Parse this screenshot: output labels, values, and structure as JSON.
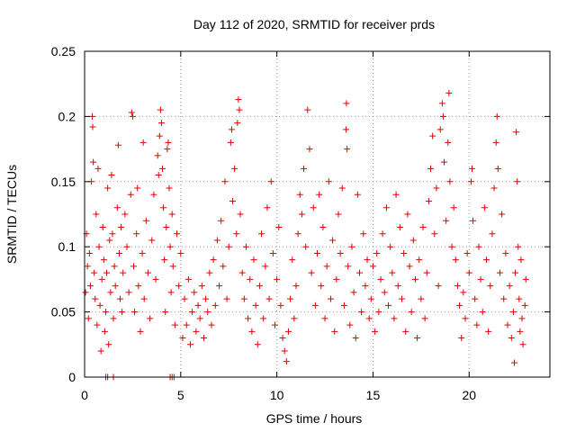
{
  "chart_data": {
    "type": "scatter",
    "title": "Day 112 of 2020, SRMTID for receiver prds",
    "xlabel": "GPS time / hours",
    "ylabel": "SRMTID / TECUs",
    "xlim": [
      0,
      24.2
    ],
    "ylim": [
      0,
      0.25
    ],
    "x_ticks": [
      0,
      5,
      10,
      15,
      20
    ],
    "x_tick_labels": [
      "0",
      "5",
      "10",
      "15",
      "20"
    ],
    "y_ticks": [
      0,
      0.05,
      0.1,
      0.15,
      0.2,
      0.25
    ],
    "y_tick_labels": [
      "0",
      "0.05",
      "0.1",
      "0.15",
      "0.2",
      "0.25"
    ],
    "grid": true,
    "marker": "+",
    "series": [
      {
        "name": "SRMTID",
        "color": "#e00000",
        "points": [
          [
            0.05,
            0.065
          ],
          [
            0.1,
            0.11
          ],
          [
            0.15,
            0.085
          ],
          [
            0.2,
            0.045
          ],
          [
            0.25,
            0.095
          ],
          [
            0.3,
            0.07
          ],
          [
            0.35,
            0.15
          ],
          [
            0.4,
            0.2
          ],
          [
            0.42,
            0.192
          ],
          [
            0.45,
            0.165
          ],
          [
            0.5,
            0.08
          ],
          [
            0.55,
            0.06
          ],
          [
            0.6,
            0.125
          ],
          [
            0.65,
            0.04
          ],
          [
            0.7,
            0.16
          ],
          [
            0.75,
            0.1
          ],
          [
            0.8,
            0.055
          ],
          [
            0.85,
            0.02
          ],
          [
            0.9,
            0.075
          ],
          [
            0.95,
            0.115
          ],
          [
            1.0,
            0.09
          ],
          [
            1.05,
            0.035
          ],
          [
            1.1,
            0.05
          ],
          [
            1.15,
            0.08
          ],
          [
            1.2,
            0.145
          ],
          [
            1.25,
            0.025
          ],
          [
            1.3,
            0.105
          ],
          [
            1.35,
            0.065
          ],
          [
            1.4,
            0.155
          ],
          [
            1.45,
            0.11
          ],
          [
            1.5,
            0.045
          ],
          [
            1.55,
            0.085
          ],
          [
            1.6,
            0.07
          ],
          [
            1.7,
            0.13
          ],
          [
            1.75,
            0.178
          ],
          [
            1.8,
            0.095
          ],
          [
            1.85,
            0.06
          ],
          [
            1.9,
            0.115
          ],
          [
            1.95,
            0.05
          ],
          [
            2.0,
            0.08
          ],
          [
            2.1,
            0.125
          ],
          [
            2.2,
            0.1
          ],
          [
            2.3,
            0.065
          ],
          [
            2.4,
            0.14
          ],
          [
            2.45,
            0.203
          ],
          [
            2.5,
            0.2
          ],
          [
            2.55,
            0.085
          ],
          [
            2.6,
            0.05
          ],
          [
            2.7,
            0.11
          ],
          [
            2.75,
            0.145
          ],
          [
            2.8,
            0.07
          ],
          [
            2.9,
            0.035
          ],
          [
            3.0,
            0.095
          ],
          [
            3.05,
            0.18
          ],
          [
            3.1,
            0.06
          ],
          [
            3.2,
            0.12
          ],
          [
            3.3,
            0.08
          ],
          [
            3.4,
            0.045
          ],
          [
            3.5,
            0.105
          ],
          [
            3.6,
            0.14
          ],
          [
            3.7,
            0.075
          ],
          [
            3.8,
            0.17
          ],
          [
            3.85,
            0.155
          ],
          [
            3.9,
            0.185
          ],
          [
            3.95,
            0.205
          ],
          [
            4.0,
            0.195
          ],
          [
            4.05,
            0.16
          ],
          [
            4.1,
            0.13
          ],
          [
            4.15,
            0.09
          ],
          [
            4.2,
            0.05
          ],
          [
            4.25,
            0.115
          ],
          [
            4.3,
            0.175
          ],
          [
            4.35,
            0.18
          ],
          [
            4.4,
            0.145
          ],
          [
            4.45,
            0.1
          ],
          [
            4.5,
            0.065
          ],
          [
            4.55,
            0.125
          ],
          [
            4.6,
            0.085
          ],
          [
            4.7,
            0.04
          ],
          [
            4.8,
            0.11
          ],
          [
            4.9,
            0.07
          ],
          [
            5.0,
            0.095
          ],
          [
            5.1,
            0.03
          ],
          [
            5.2,
            0.06
          ],
          [
            5.3,
            0.04
          ],
          [
            5.4,
            0.075
          ],
          [
            5.5,
            0.025
          ],
          [
            5.6,
            0.05
          ],
          [
            5.7,
            0.065
          ],
          [
            5.8,
            0.035
          ],
          [
            5.9,
            0.055
          ],
          [
            6.0,
            0.045
          ],
          [
            6.1,
            0.07
          ],
          [
            6.2,
            0.03
          ],
          [
            6.3,
            0.06
          ],
          [
            6.4,
            0.05
          ],
          [
            6.5,
            0.08
          ],
          [
            6.6,
            0.04
          ],
          [
            6.7,
            0.09
          ],
          [
            6.8,
            0.055
          ],
          [
            6.9,
            0.105
          ],
          [
            7.0,
            0.07
          ],
          [
            7.1,
            0.12
          ],
          [
            7.2,
            0.085
          ],
          [
            7.3,
            0.15
          ],
          [
            7.4,
            0.06
          ],
          [
            7.5,
            0.1
          ],
          [
            7.6,
            0.18
          ],
          [
            7.65,
            0.19
          ],
          [
            7.7,
            0.135
          ],
          [
            7.8,
            0.16
          ],
          [
            7.9,
            0.11
          ],
          [
            7.95,
            0.195
          ],
          [
            8.0,
            0.213
          ],
          [
            8.05,
            0.205
          ],
          [
            8.1,
            0.125
          ],
          [
            8.2,
            0.08
          ],
          [
            8.3,
            0.06
          ],
          [
            8.4,
            0.1
          ],
          [
            8.5,
            0.045
          ],
          [
            8.6,
            0.075
          ],
          [
            8.7,
            0.035
          ],
          [
            8.8,
            0.09
          ],
          [
            8.9,
            0.055
          ],
          [
            9.0,
            0.025
          ],
          [
            9.1,
            0.07
          ],
          [
            9.2,
            0.11
          ],
          [
            9.3,
            0.045
          ],
          [
            9.4,
            0.085
          ],
          [
            9.5,
            0.13
          ],
          [
            9.6,
            0.06
          ],
          [
            9.7,
            0.15
          ],
          [
            9.8,
            0.095
          ],
          [
            9.9,
            0.04
          ],
          [
            10.0,
            0.075
          ],
          [
            10.1,
            0.115
          ],
          [
            10.2,
            0.055
          ],
          [
            10.3,
            0.03
          ],
          [
            10.4,
            0.02
          ],
          [
            10.5,
            0.012
          ],
          [
            10.6,
            0.035
          ],
          [
            10.7,
            0.06
          ],
          [
            10.8,
            0.09
          ],
          [
            10.9,
            0.045
          ],
          [
            11.0,
            0.07
          ],
          [
            11.1,
            0.11
          ],
          [
            11.2,
            0.14
          ],
          [
            11.3,
            0.125
          ],
          [
            11.4,
            0.16
          ],
          [
            11.5,
            0.1
          ],
          [
            11.6,
            0.205
          ],
          [
            11.7,
            0.175
          ],
          [
            11.8,
            0.08
          ],
          [
            11.9,
            0.13
          ],
          [
            12.0,
            0.055
          ],
          [
            12.1,
            0.095
          ],
          [
            12.2,
            0.14
          ],
          [
            12.3,
            0.07
          ],
          [
            12.4,
            0.115
          ],
          [
            12.5,
            0.045
          ],
          [
            12.6,
            0.085
          ],
          [
            12.7,
            0.15
          ],
          [
            12.8,
            0.06
          ],
          [
            12.9,
            0.105
          ],
          [
            13.0,
            0.035
          ],
          [
            13.1,
            0.075
          ],
          [
            13.2,
            0.125
          ],
          [
            13.3,
            0.095
          ],
          [
            13.4,
            0.145
          ],
          [
            13.5,
            0.055
          ],
          [
            13.6,
            0.19
          ],
          [
            13.62,
            0.21
          ],
          [
            13.65,
            0.175
          ],
          [
            13.7,
            0.085
          ],
          [
            13.8,
            0.04
          ],
          [
            13.9,
            0.1
          ],
          [
            14.0,
            0.065
          ],
          [
            14.1,
            0.03
          ],
          [
            14.2,
            0.14
          ],
          [
            14.3,
            0.08
          ],
          [
            14.4,
            0.05
          ],
          [
            14.5,
            0.11
          ],
          [
            14.6,
            0.07
          ],
          [
            14.7,
            0.09
          ],
          [
            14.8,
            0.045
          ],
          [
            14.9,
            0.06
          ],
          [
            15.0,
            0.085
          ],
          [
            15.1,
            0.035
          ],
          [
            15.2,
            0.095
          ],
          [
            15.3,
            0.05
          ],
          [
            15.4,
            0.075
          ],
          [
            15.5,
            0.11
          ],
          [
            15.6,
            0.065
          ],
          [
            15.7,
            0.13
          ],
          [
            15.8,
            0.055
          ],
          [
            15.9,
            0.1
          ],
          [
            16.0,
            0.08
          ],
          [
            16.1,
            0.045
          ],
          [
            16.2,
            0.14
          ],
          [
            16.3,
            0.07
          ],
          [
            16.4,
            0.115
          ],
          [
            16.5,
            0.06
          ],
          [
            16.6,
            0.095
          ],
          [
            16.7,
            0.035
          ],
          [
            16.8,
            0.125
          ],
          [
            16.9,
            0.085
          ],
          [
            17.0,
            0.05
          ],
          [
            17.1,
            0.105
          ],
          [
            17.2,
            0.075
          ],
          [
            17.3,
            0.03
          ],
          [
            17.4,
            0.09
          ],
          [
            17.5,
            0.06
          ],
          [
            17.6,
            0.115
          ],
          [
            17.7,
            0.045
          ],
          [
            17.8,
            0.08
          ],
          [
            17.9,
            0.135
          ],
          [
            18.0,
            0.16
          ],
          [
            18.1,
            0.185
          ],
          [
            18.2,
            0.11
          ],
          [
            18.3,
            0.145
          ],
          [
            18.4,
            0.07
          ],
          [
            18.5,
            0.19
          ],
          [
            18.6,
            0.21
          ],
          [
            18.65,
            0.2
          ],
          [
            18.7,
            0.165
          ],
          [
            18.8,
            0.12
          ],
          [
            18.9,
            0.18
          ],
          [
            18.95,
            0.218
          ],
          [
            19.0,
            0.15
          ],
          [
            19.1,
            0.1
          ],
          [
            19.2,
            0.13
          ],
          [
            19.3,
            0.09
          ],
          [
            19.4,
            0.07
          ],
          [
            19.5,
            0.055
          ],
          [
            19.6,
            0.03
          ],
          [
            19.7,
            0.065
          ],
          [
            19.8,
            0.045
          ],
          [
            19.9,
            0.095
          ],
          [
            20.0,
            0.08
          ],
          [
            20.1,
            0.15
          ],
          [
            20.15,
            0.16
          ],
          [
            20.2,
            0.12
          ],
          [
            20.3,
            0.06
          ],
          [
            20.4,
            0.04
          ],
          [
            20.5,
            0.1
          ],
          [
            20.6,
            0.075
          ],
          [
            20.7,
            0.05
          ],
          [
            20.8,
            0.13
          ],
          [
            20.9,
            0.09
          ],
          [
            21.0,
            0.035
          ],
          [
            21.1,
            0.07
          ],
          [
            21.2,
            0.11
          ],
          [
            21.3,
            0.145
          ],
          [
            21.4,
            0.18
          ],
          [
            21.45,
            0.2
          ],
          [
            21.5,
            0.16
          ],
          [
            21.6,
            0.08
          ],
          [
            21.7,
            0.125
          ],
          [
            21.8,
            0.06
          ],
          [
            21.9,
            0.095
          ],
          [
            22.0,
            0.04
          ],
          [
            22.1,
            0.07
          ],
          [
            22.2,
            0.03
          ],
          [
            22.3,
            0.05
          ],
          [
            22.35,
            0.011
          ],
          [
            22.4,
            0.08
          ],
          [
            22.45,
            0.188
          ],
          [
            22.5,
            0.15
          ],
          [
            22.55,
            0.1
          ],
          [
            22.6,
            0.06
          ],
          [
            22.65,
            0.035
          ],
          [
            22.7,
            0.09
          ],
          [
            22.75,
            0.045
          ],
          [
            22.8,
            0.025
          ],
          [
            22.9,
            0.055
          ],
          [
            22.95,
            0.075
          ],
          [
            1.1,
            0.0
          ],
          [
            1.2,
            0.0
          ],
          [
            1.5,
            0.0
          ],
          [
            4.45,
            0.0
          ],
          [
            4.55,
            0.0
          ],
          [
            4.65,
            0.0
          ]
        ]
      }
    ]
  }
}
